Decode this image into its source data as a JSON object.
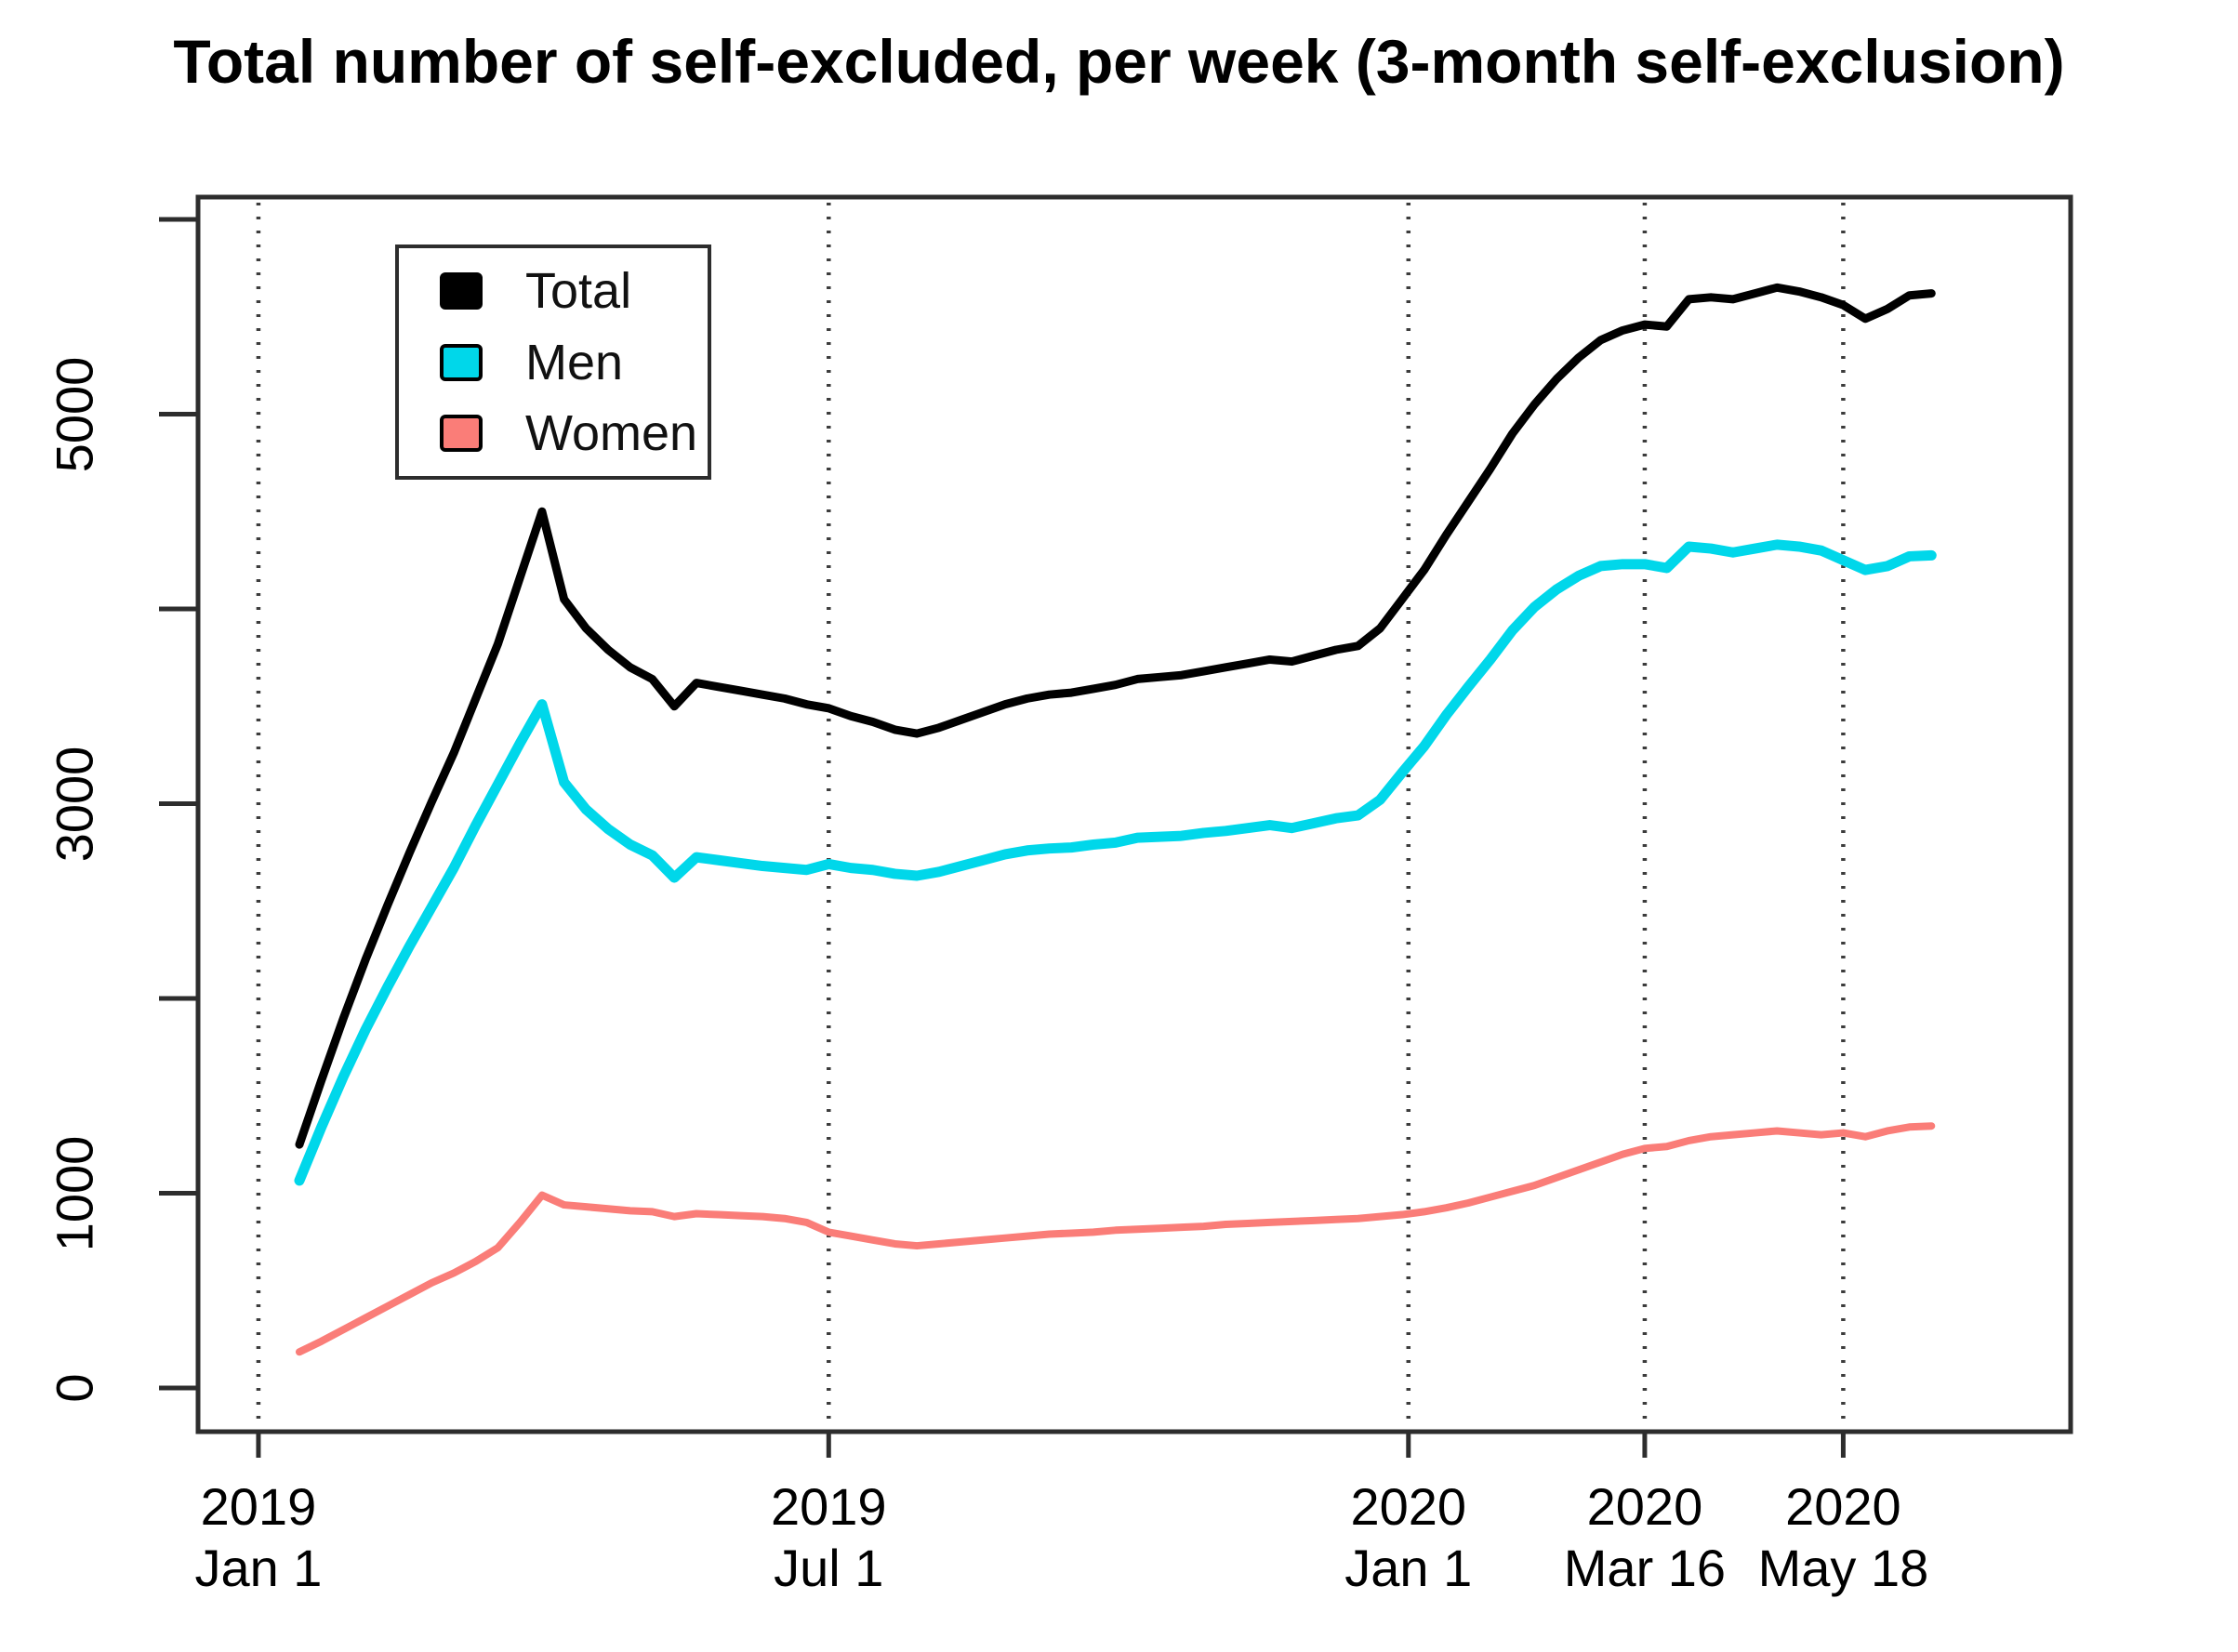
{
  "figure": {
    "title": "Total number of self-excluded, per week (3-month self-exclusion)",
    "background_color": "#ffffff",
    "axis_color": "#2d2d2d",
    "gridline_color": "#3c3c3c"
  },
  "legend": {
    "position": "top-left-inside",
    "items": [
      {
        "label": "Total",
        "color": "#000000"
      },
      {
        "label": "Men",
        "color": "#00d7ea"
      },
      {
        "label": "Women",
        "color": "#fa7d78"
      }
    ]
  },
  "chart_data": {
    "type": "line",
    "title": "Total number of self-excluded, per week (3-month self-exclusion)",
    "xlabel": "",
    "ylabel": "",
    "x_start_date": "2019-01-14",
    "x_interval_days": 7,
    "ylim": [
      0,
      6140
    ],
    "grid": "dotted-vertical-at-x-ticks",
    "legend_position": "top-left-inside",
    "y_ticks_all": [
      0,
      1000,
      2000,
      3000,
      4000,
      5000,
      6000
    ],
    "y_ticks_labeled": [
      0,
      1000,
      3000,
      5000
    ],
    "x_ticks": [
      {
        "year": "2019",
        "label": "Jan 1",
        "day_offset": -13
      },
      {
        "year": "2019",
        "label": "Jul 1",
        "day_offset": 168
      },
      {
        "year": "2020",
        "label": "Jan 1",
        "day_offset": 352
      },
      {
        "year": "2020",
        "label": "Mar 16",
        "day_offset": 427
      },
      {
        "year": "2020",
        "label": "May 18",
        "day_offset": 490
      }
    ],
    "series": [
      {
        "name": "Total",
        "color": "#000000",
        "values": [
          1250,
          1580,
          1900,
          2200,
          2480,
          2750,
          3010,
          3260,
          3540,
          3820,
          4160,
          4500,
          4050,
          3900,
          3790,
          3700,
          3640,
          3500,
          3620,
          3600,
          3580,
          3560,
          3540,
          3510,
          3490,
          3450,
          3420,
          3380,
          3360,
          3390,
          3430,
          3470,
          3510,
          3540,
          3560,
          3570,
          3590,
          3610,
          3640,
          3650,
          3660,
          3680,
          3700,
          3720,
          3740,
          3730,
          3760,
          3790,
          3810,
          3900,
          4050,
          4200,
          4380,
          4550,
          4720,
          4900,
          5050,
          5180,
          5290,
          5380,
          5430,
          5460,
          5450,
          5590,
          5600,
          5590,
          5620,
          5650,
          5630,
          5600,
          5560,
          5490,
          5540,
          5610,
          5620
        ]
      },
      {
        "name": "Men",
        "color": "#00d7ea",
        "values": [
          1065,
          1340,
          1600,
          1840,
          2060,
          2270,
          2470,
          2670,
          2890,
          3100,
          3310,
          3510,
          3110,
          2970,
          2870,
          2790,
          2735,
          2620,
          2725,
          2710,
          2695,
          2680,
          2670,
          2660,
          2690,
          2670,
          2660,
          2640,
          2630,
          2650,
          2680,
          2710,
          2740,
          2760,
          2770,
          2775,
          2790,
          2800,
          2825,
          2830,
          2835,
          2850,
          2860,
          2875,
          2890,
          2875,
          2900,
          2925,
          2940,
          3020,
          3160,
          3295,
          3455,
          3600,
          3740,
          3890,
          4010,
          4100,
          4170,
          4220,
          4230,
          4230,
          4210,
          4320,
          4310,
          4290,
          4310,
          4330,
          4320,
          4300,
          4250,
          4200,
          4220,
          4270,
          4275
        ]
      },
      {
        "name": "Women",
        "color": "#fa7d78",
        "values": [
          185,
          240,
          300,
          360,
          420,
          480,
          540,
          590,
          650,
          720,
          850,
          990,
          940,
          930,
          920,
          910,
          905,
          880,
          895,
          890,
          885,
          880,
          870,
          850,
          800,
          780,
          760,
          740,
          730,
          740,
          750,
          760,
          770,
          780,
          790,
          795,
          800,
          810,
          815,
          820,
          825,
          830,
          840,
          845,
          850,
          855,
          860,
          865,
          870,
          880,
          890,
          905,
          925,
          950,
          980,
          1010,
          1040,
          1080,
          1120,
          1160,
          1200,
          1230,
          1240,
          1270,
          1290,
          1300,
          1310,
          1320,
          1310,
          1300,
          1310,
          1290,
          1320,
          1340,
          1345
        ]
      }
    ]
  }
}
